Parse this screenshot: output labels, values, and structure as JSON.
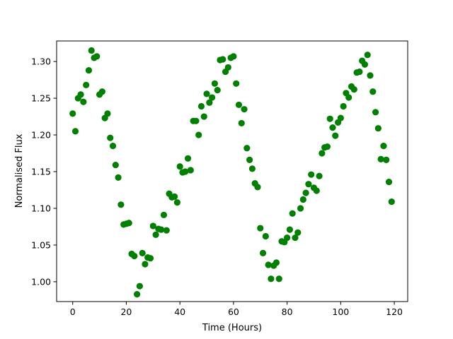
{
  "chart_data": {
    "type": "scatter",
    "title": "",
    "xlabel": "Time (Hours)",
    "ylabel": "Normalised Flux",
    "xlim": [
      -6,
      125
    ],
    "ylim": [
      0.973,
      1.328
    ],
    "xticks": [
      0,
      20,
      40,
      60,
      80,
      100,
      120
    ],
    "yticks": [
      1.0,
      1.05,
      1.1,
      1.15,
      1.2,
      1.25,
      1.3
    ],
    "xtick_labels": [
      "0",
      "20",
      "40",
      "60",
      "80",
      "100",
      "120"
    ],
    "ytick_labels": [
      "1.00",
      "1.05",
      "1.10",
      "1.15",
      "1.20",
      "1.25",
      "1.30"
    ],
    "grid": false,
    "marker_color": "#008000",
    "series": [
      {
        "points": [
          [
            0,
            1.229
          ],
          [
            1,
            1.205
          ],
          [
            2,
            1.25
          ],
          [
            3,
            1.255
          ],
          [
            4,
            1.245
          ],
          [
            5,
            1.268
          ],
          [
            6,
            1.288
          ],
          [
            7,
            1.315
          ],
          [
            8,
            1.305
          ],
          [
            9,
            1.307
          ],
          [
            10,
            1.255
          ],
          [
            11,
            1.259
          ],
          [
            12,
            1.223
          ],
          [
            13,
            1.229
          ],
          [
            14,
            1.196
          ],
          [
            15,
            1.185
          ],
          [
            16,
            1.159
          ],
          [
            17,
            1.142
          ],
          [
            18,
            1.105
          ],
          [
            19,
            1.078
          ],
          [
            20,
            1.079
          ],
          [
            21,
            1.08
          ],
          [
            22,
            1.038
          ],
          [
            23,
            1.035
          ],
          [
            24,
            0.983
          ],
          [
            25,
            0.994
          ],
          [
            26,
            1.039
          ],
          [
            27,
            1.024
          ],
          [
            28,
            1.033
          ],
          [
            29,
            1.032
          ],
          [
            30,
            1.076
          ],
          [
            31,
            1.064
          ],
          [
            32,
            1.072
          ],
          [
            33,
            1.071
          ],
          [
            34,
            1.091
          ],
          [
            35,
            1.07
          ],
          [
            36,
            1.12
          ],
          [
            37,
            1.115
          ],
          [
            38,
            1.116
          ],
          [
            39,
            1.108
          ],
          [
            40,
            1.157
          ],
          [
            41,
            1.149
          ],
          [
            42,
            1.15
          ],
          [
            43,
            1.168
          ],
          [
            44,
            1.152
          ],
          [
            45,
            1.219
          ],
          [
            46,
            1.219
          ],
          [
            47,
            1.2
          ],
          [
            48,
            1.239
          ],
          [
            49,
            1.225
          ],
          [
            50,
            1.256
          ],
          [
            51,
            1.244
          ],
          [
            52,
            1.251
          ],
          [
            53,
            1.27
          ],
          [
            54,
            1.261
          ],
          [
            55,
            1.302
          ],
          [
            56,
            1.303
          ],
          [
            57,
            1.286
          ],
          [
            58,
            1.292
          ],
          [
            59,
            1.305
          ],
          [
            60,
            1.307
          ],
          [
            61,
            1.27
          ],
          [
            62,
            1.241
          ],
          [
            63,
            1.216
          ],
          [
            64,
            1.235
          ],
          [
            65,
            1.182
          ],
          [
            66,
            1.166
          ],
          [
            67,
            1.154
          ],
          [
            68,
            1.134
          ],
          [
            69,
            1.129
          ],
          [
            70,
            1.073
          ],
          [
            71,
            1.039
          ],
          [
            72,
            1.062
          ],
          [
            73,
            1.023
          ],
          [
            74,
            1.004
          ],
          [
            75,
            1.022
          ],
          [
            76,
            1.026
          ],
          [
            77,
            1.004
          ],
          [
            78,
            1.055
          ],
          [
            79,
            1.054
          ],
          [
            80,
            1.06
          ],
          [
            81,
            1.071
          ],
          [
            82,
            1.093
          ],
          [
            83,
            1.06
          ],
          [
            84,
            1.067
          ],
          [
            85,
            1.1
          ],
          [
            86,
            1.112
          ],
          [
            87,
            1.121
          ],
          [
            88,
            1.133
          ],
          [
            89,
            1.146
          ],
          [
            90,
            1.128
          ],
          [
            91,
            1.124
          ],
          [
            92,
            1.144
          ],
          [
            93,
            1.175
          ],
          [
            94,
            1.183
          ],
          [
            95,
            1.184
          ],
          [
            96,
            1.222
          ],
          [
            97,
            1.21
          ],
          [
            98,
            1.199
          ],
          [
            99,
            1.217
          ],
          [
            100,
            1.223
          ],
          [
            101,
            1.239
          ],
          [
            102,
            1.257
          ],
          [
            103,
            1.251
          ],
          [
            104,
            1.266
          ],
          [
            105,
            1.262
          ],
          [
            106,
            1.285
          ],
          [
            107,
            1.286
          ],
          [
            108,
            1.301
          ],
          [
            109,
            1.296
          ],
          [
            110,
            1.309
          ],
          [
            111,
            1.281
          ],
          [
            112,
            1.259
          ],
          [
            113,
            1.231
          ],
          [
            114,
            1.209
          ],
          [
            115,
            1.167
          ],
          [
            116,
            1.185
          ],
          [
            117,
            1.166
          ],
          [
            118,
            1.136
          ],
          [
            119,
            1.109
          ]
        ]
      }
    ]
  }
}
